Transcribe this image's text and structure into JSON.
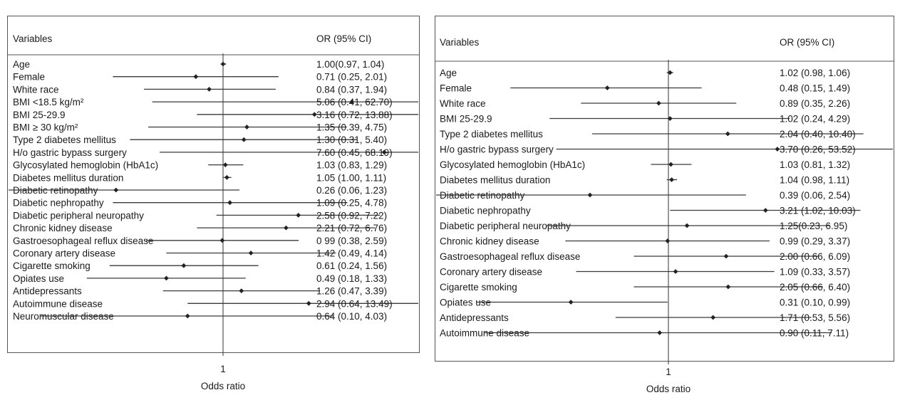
{
  "chart_data": [
    {
      "type": "forest",
      "header_left": "Variables",
      "header_right": "OR (95% CI)",
      "xlabel": "Odds ratio",
      "x_scale": "log2",
      "xlim": [
        0.004,
        500
      ],
      "ticks": [
        {
          "value": 0.015625,
          "label": ".015625"
        },
        {
          "value": 1,
          "label": "1"
        },
        {
          "value": 64,
          "label": "64"
        }
      ],
      "reference_line": 1,
      "rows": [
        {
          "label": "Age",
          "or": 1.0,
          "lo": 0.97,
          "hi": 1.04,
          "ci_text": "1.00(0.97, 1.04)"
        },
        {
          "label": "Female",
          "or": 0.71,
          "lo": 0.25,
          "hi": 2.01,
          "ci_text": "0.71 (0.25, 2.01)"
        },
        {
          "label": "White race",
          "or": 0.84,
          "lo": 0.37,
          "hi": 1.94,
          "ci_text": "0.84 (0.37, 1.94)"
        },
        {
          "label": "BMI <18.5 kg/m²",
          "or": 5.06,
          "lo": 0.41,
          "hi": 62.7,
          "ci_text": "5.06 (0.41, 62.70)"
        },
        {
          "label": "BMI 25-29.9",
          "or": 3.16,
          "lo": 0.72,
          "hi": 13.88,
          "ci_text": "3.16 (0.72, 13.88)"
        },
        {
          "label": "BMI ≥ 30 kg/m²",
          "or": 1.35,
          "lo": 0.39,
          "hi": 4.75,
          "ci_text": "1.35 (0.39, 4.75)"
        },
        {
          "label": "Type 2 diabetes mellitus",
          "or": 1.3,
          "lo": 0.31,
          "hi": 5.4,
          "ci_text": "1.30 (0.31, 5.40)"
        },
        {
          "label": "H/o gastric bypass surgery",
          "or": 7.6,
          "lo": 0.45,
          "hi": 68.19,
          "ci_text": "7.60 (0.45, 68.19)"
        },
        {
          "label": "Glycosylated hemoglobin (HbA1c)",
          "or": 1.03,
          "lo": 0.83,
          "hi": 1.29,
          "ci_text": "1.03 (0.83, 1.29)"
        },
        {
          "label": "Diabetes mellitus duration",
          "or": 1.05,
          "lo": 1.0,
          "hi": 1.11,
          "ci_text": "1.05 (1.00, 1.11)"
        },
        {
          "label": "Diabetic retinopathy",
          "or": 0.26,
          "lo": 0.06,
          "hi": 1.23,
          "ci_text": "0.26 (0.06, 1.23)"
        },
        {
          "label": "Diabetic nephropathy",
          "or": 1.09,
          "lo": 0.25,
          "hi": 4.78,
          "ci_text": "1.09 (0.25, 4.78)"
        },
        {
          "label": "Diabetic peripheral neuropathy",
          "or": 2.58,
          "lo": 0.92,
          "hi": 7.22,
          "ci_text": "2.58 (0.92, 7.22)"
        },
        {
          "label": "Chronic kidney disease",
          "or": 2.21,
          "lo": 0.72,
          "hi": 6.76,
          "ci_text": "2.21 (0.72, 6.76)"
        },
        {
          "label": "Gastroesophageal reflux disease",
          "or": 0.99,
          "lo": 0.38,
          "hi": 2.59,
          "ci_text": "0 99 (0.38, 2.59)"
        },
        {
          "label": "Coronary artery disease",
          "or": 1.42,
          "lo": 0.49,
          "hi": 4.14,
          "ci_text": "1.42 (0.49, 4.14)"
        },
        {
          "label": "Cigarette smoking",
          "or": 0.61,
          "lo": 0.24,
          "hi": 1.56,
          "ci_text": "0.61 (0.24, 1.56)"
        },
        {
          "label": "Opiates use",
          "or": 0.49,
          "lo": 0.18,
          "hi": 1.33,
          "ci_text": "0.49 (0.18, 1.33)"
        },
        {
          "label": "Antidepressants",
          "or": 1.26,
          "lo": 0.47,
          "hi": 3.39,
          "ci_text": "1.26 (0.47, 3.39)"
        },
        {
          "label": "Autoimmune disease",
          "or": 2.94,
          "lo": 0.64,
          "hi": 13.49,
          "ci_text": "2.94 (0.64, 13.49)"
        },
        {
          "label": "Neuromuscular disease",
          "or": 0.64,
          "lo": 0.1,
          "hi": 4.03,
          "ci_text": "0.64 (0.10, 4.03)"
        }
      ]
    },
    {
      "type": "forest",
      "header_left": "Variables",
      "header_right": "OR (95% CI)",
      "xlabel": "Odds ratio",
      "x_scale": "log2",
      "xlim": [
        0.004,
        500
      ],
      "ticks": [
        {
          "value": 0.015625,
          "label": ".015625"
        },
        {
          "value": 1,
          "label": "1"
        },
        {
          "value": 64,
          "label": "64"
        }
      ],
      "reference_line": 1,
      "rows": [
        {
          "label": "Age",
          "or": 1.02,
          "lo": 0.98,
          "hi": 1.06,
          "ci_text": "1.02 (0.98, 1.06)"
        },
        {
          "label": "Female",
          "or": 0.48,
          "lo": 0.15,
          "hi": 1.49,
          "ci_text": "0.48 (0.15, 1.49)"
        },
        {
          "label": "White race",
          "or": 0.89,
          "lo": 0.35,
          "hi": 2.26,
          "ci_text": "0.89 (0.35, 2.26)"
        },
        {
          "label": "BMI 25-29.9",
          "or": 1.02,
          "lo": 0.24,
          "hi": 4.29,
          "ci_text": "1.02 (0.24, 4.29)"
        },
        {
          "label": "Type 2 diabetes mellitus",
          "or": 2.04,
          "lo": 0.4,
          "hi": 10.4,
          "ci_text": "2.04 (0.40, 10.40)"
        },
        {
          "label": "H/o gastric bypass surgery",
          "or": 3.7,
          "lo": 0.26,
          "hi": 53.52,
          "ci_text": "3.70 (0.26, 53.52)"
        },
        {
          "label": "Glycosylated hemoglobin (HbA1c)",
          "or": 1.03,
          "lo": 0.81,
          "hi": 1.32,
          "ci_text": "1.03 (0.81, 1.32)"
        },
        {
          "label": "Diabetes mellitus duration",
          "or": 1.04,
          "lo": 0.98,
          "hi": 1.11,
          "ci_text": "1.04 (0.98, 1.11)"
        },
        {
          "label": "Diabetic retinopathy",
          "or": 0.39,
          "lo": 0.06,
          "hi": 2.54,
          "ci_text": "0.39 (0.06, 2.54)"
        },
        {
          "label": "Diabetic nephropathy",
          "or": 3.21,
          "lo": 1.02,
          "hi": 10.03,
          "ci_text": "3.21 (1.02, 10.03)"
        },
        {
          "label": "Diabetic peripheral neuropathy",
          "or": 1.25,
          "lo": 0.23,
          "hi": 6.95,
          "ci_text": "1.25(0.23, 6.95)"
        },
        {
          "label": "Chronic kidney disease",
          "or": 0.99,
          "lo": 0.29,
          "hi": 3.37,
          "ci_text": "0.99 (0.29, 3.37)"
        },
        {
          "label": "Gastroesophageal reflux disease",
          "or": 2.0,
          "lo": 0.66,
          "hi": 6.09,
          "ci_text": "2.00 (0.66, 6.09)"
        },
        {
          "label": "Coronary artery disease",
          "or": 1.09,
          "lo": 0.33,
          "hi": 3.57,
          "ci_text": "1.09 (0.33, 3.57)"
        },
        {
          "label": "Cigarette smoking",
          "or": 2.05,
          "lo": 0.66,
          "hi": 6.4,
          "ci_text": "2.05 (0.66, 6.40)"
        },
        {
          "label": "Opiates use",
          "or": 0.31,
          "lo": 0.1,
          "hi": 0.99,
          "ci_text": "0.31 (0.10, 0.99)"
        },
        {
          "label": "Antidepressants",
          "or": 1.71,
          "lo": 0.53,
          "hi": 5.56,
          "ci_text": "1.71 (0.53, 5.56)"
        },
        {
          "label": "Autoimmune disease",
          "or": 0.9,
          "lo": 0.11,
          "hi": 7.11,
          "ci_text": "0.90 (0.11, 7.11)"
        }
      ]
    }
  ]
}
